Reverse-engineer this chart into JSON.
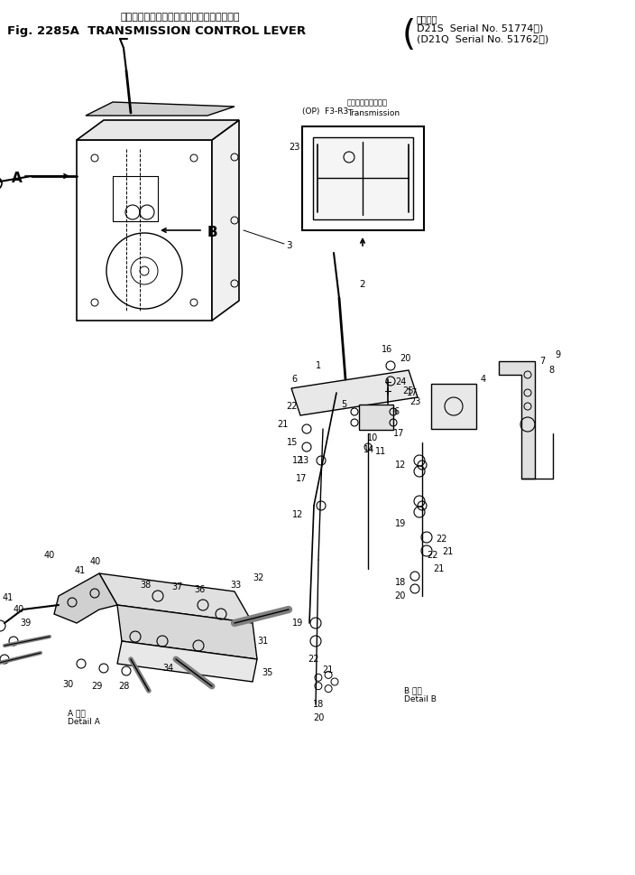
{
  "bg_color": "#ffffff",
  "line_color": "#000000",
  "figsize": [
    7.04,
    9.69
  ],
  "dpi": 100,
  "title_jp": "トランスミッション　コントロール　レバー",
  "title_en": "Fig. 2285A  TRANSMISSION CONTROL LEVER",
  "brace": "(",
  "serial_title": "適用号機",
  "serial1": "D21S  Serial No. 51774～)",
  "serial2": "(D21Q  Serial No. 51762～)",
  "op_label": "(OP)  F3-R3",
  "trans_jp": "トランスミッション",
  "trans_en": "Transmission",
  "detail_a": "A 詳細\nDetail A",
  "detail_b": "B 詳細\nDetail B"
}
